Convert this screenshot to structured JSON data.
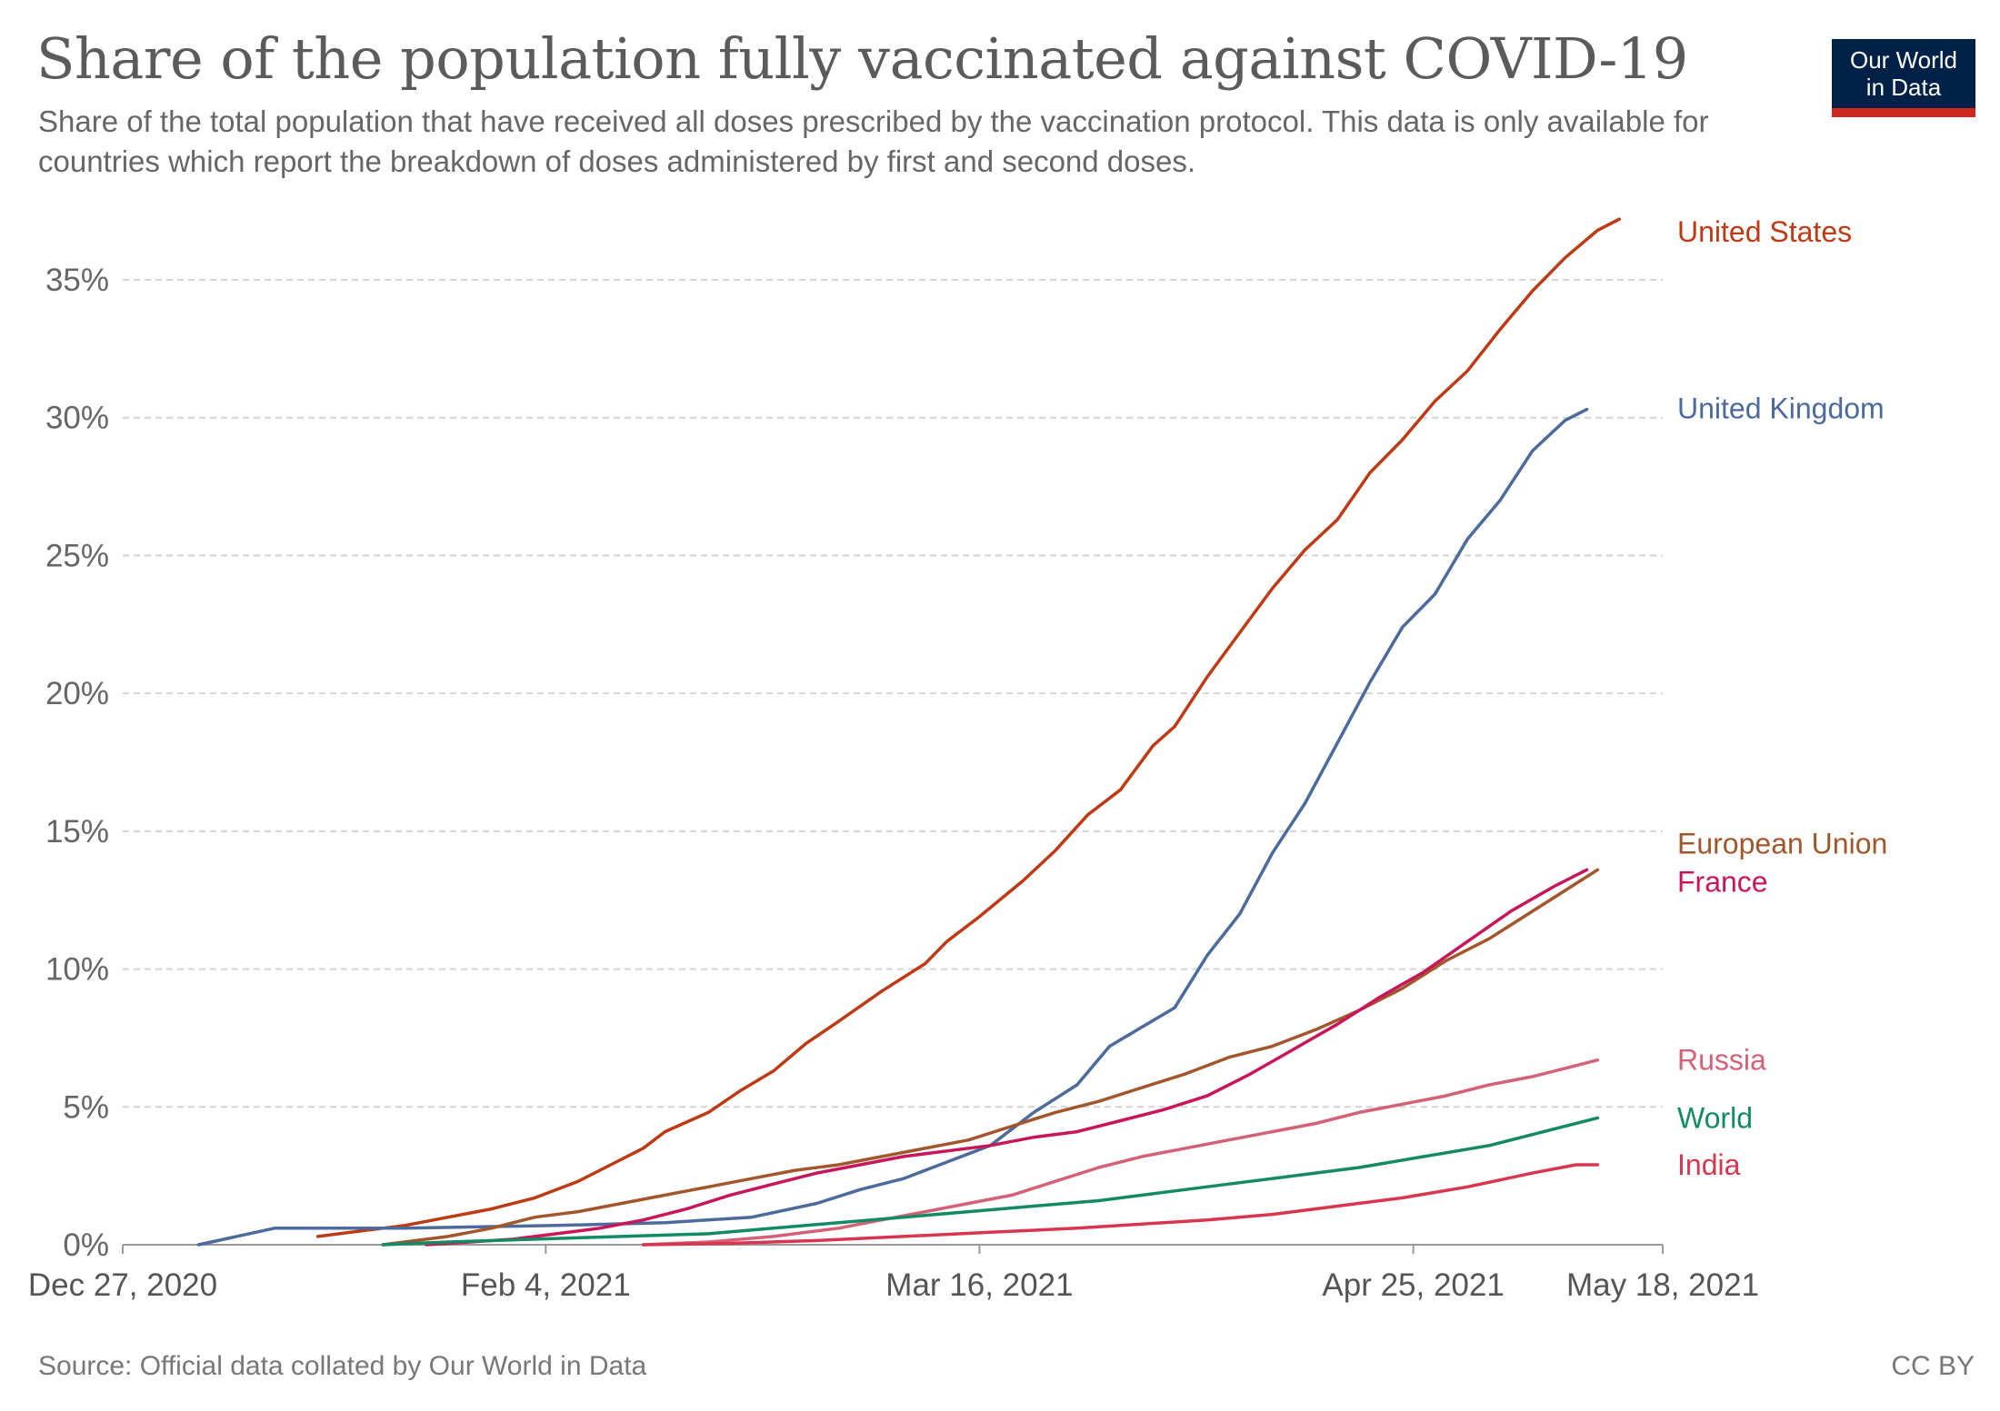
{
  "header": {
    "title": "Share of the population fully vaccinated against COVID-19",
    "subtitle": "Share of the total population that have received all doses prescribed by the vaccination protocol. This data is only available for countries which report the breakdown of doses administered by first and second doses."
  },
  "logo": {
    "line1": "Our World",
    "line2": "in Data",
    "bg_color": "#002147",
    "stripe_color": "#ce261e"
  },
  "footer": {
    "source": "Source: Official data collated by Our World in Data",
    "license": "CC BY"
  },
  "chart_data": {
    "type": "line",
    "title": "Share of the population fully vaccinated against COVID-19",
    "ylim": [
      0,
      35
    ],
    "yticks": [
      0,
      5,
      10,
      15,
      20,
      25,
      30,
      35
    ],
    "ytick_labels": [
      "0%",
      "5%",
      "10%",
      "15%",
      "20%",
      "25%",
      "30%",
      "35%"
    ],
    "xlim": [
      0,
      142
    ],
    "xticks": [
      0,
      39,
      79,
      119,
      142
    ],
    "xtick_labels": [
      "Dec 27, 2020",
      "Feb 4, 2021",
      "Mar 16, 2021",
      "Apr 25, 2021",
      "May 18, 2021"
    ],
    "grid": "horizontal-dashed",
    "series": [
      {
        "name": "United States",
        "color": "#be3a15",
        "points": [
          [
            18,
            0.3
          ],
          [
            22,
            0.5
          ],
          [
            26,
            0.7
          ],
          [
            30,
            1.0
          ],
          [
            34,
            1.3
          ],
          [
            38,
            1.7
          ],
          [
            42,
            2.3
          ],
          [
            45,
            2.9
          ],
          [
            48,
            3.5
          ],
          [
            50,
            4.1
          ],
          [
            54,
            4.8
          ],
          [
            57,
            5.6
          ],
          [
            60,
            6.3
          ],
          [
            63,
            7.3
          ],
          [
            66,
            8.1
          ],
          [
            70,
            9.2
          ],
          [
            74,
            10.2
          ],
          [
            76,
            11.0
          ],
          [
            79,
            11.9
          ],
          [
            83,
            13.2
          ],
          [
            86,
            14.3
          ],
          [
            89,
            15.6
          ],
          [
            92,
            16.5
          ],
          [
            95,
            18.1
          ],
          [
            97,
            18.8
          ],
          [
            100,
            20.6
          ],
          [
            103,
            22.2
          ],
          [
            106,
            23.8
          ],
          [
            109,
            25.2
          ],
          [
            112,
            26.3
          ],
          [
            115,
            28.0
          ],
          [
            118,
            29.2
          ],
          [
            121,
            30.6
          ],
          [
            124,
            31.7
          ],
          [
            127,
            33.2
          ],
          [
            130,
            34.6
          ],
          [
            133,
            35.8
          ],
          [
            136,
            36.8
          ],
          [
            138,
            37.2
          ]
        ]
      },
      {
        "name": "United Kingdom",
        "color": "#4c6a9c",
        "points": [
          [
            7,
            0.0
          ],
          [
            14,
            0.6
          ],
          [
            26,
            0.6
          ],
          [
            40,
            0.7
          ],
          [
            50,
            0.8
          ],
          [
            58,
            1.0
          ],
          [
            64,
            1.5
          ],
          [
            68,
            2.0
          ],
          [
            72,
            2.4
          ],
          [
            76,
            3.0
          ],
          [
            80,
            3.6
          ],
          [
            84,
            4.8
          ],
          [
            88,
            5.8
          ],
          [
            91,
            7.2
          ],
          [
            94,
            7.9
          ],
          [
            97,
            8.6
          ],
          [
            100,
            10.5
          ],
          [
            103,
            12.0
          ],
          [
            106,
            14.2
          ],
          [
            109,
            16.0
          ],
          [
            112,
            18.2
          ],
          [
            115,
            20.4
          ],
          [
            118,
            22.4
          ],
          [
            121,
            23.6
          ],
          [
            124,
            25.6
          ],
          [
            127,
            27.0
          ],
          [
            130,
            28.8
          ],
          [
            133,
            29.9
          ],
          [
            135,
            30.3
          ]
        ]
      },
      {
        "name": "European Union",
        "color": "#a2562c",
        "points": [
          [
            24,
            0.0
          ],
          [
            30,
            0.3
          ],
          [
            34,
            0.6
          ],
          [
            38,
            1.0
          ],
          [
            42,
            1.2
          ],
          [
            46,
            1.5
          ],
          [
            50,
            1.8
          ],
          [
            54,
            2.1
          ],
          [
            58,
            2.4
          ],
          [
            62,
            2.7
          ],
          [
            66,
            2.9
          ],
          [
            70,
            3.2
          ],
          [
            74,
            3.5
          ],
          [
            78,
            3.8
          ],
          [
            82,
            4.3
          ],
          [
            86,
            4.8
          ],
          [
            90,
            5.2
          ],
          [
            94,
            5.7
          ],
          [
            98,
            6.2
          ],
          [
            102,
            6.8
          ],
          [
            106,
            7.2
          ],
          [
            110,
            7.8
          ],
          [
            114,
            8.5
          ],
          [
            118,
            9.3
          ],
          [
            122,
            10.3
          ],
          [
            126,
            11.1
          ],
          [
            130,
            12.1
          ],
          [
            134,
            13.1
          ],
          [
            136,
            13.6
          ]
        ]
      },
      {
        "name": "France",
        "color": "#c8165b",
        "points": [
          [
            28,
            0.0
          ],
          [
            32,
            0.1
          ],
          [
            36,
            0.2
          ],
          [
            40,
            0.4
          ],
          [
            44,
            0.6
          ],
          [
            48,
            0.9
          ],
          [
            52,
            1.3
          ],
          [
            56,
            1.8
          ],
          [
            60,
            2.2
          ],
          [
            64,
            2.6
          ],
          [
            68,
            2.9
          ],
          [
            72,
            3.2
          ],
          [
            76,
            3.4
          ],
          [
            80,
            3.6
          ],
          [
            84,
            3.9
          ],
          [
            88,
            4.1
          ],
          [
            92,
            4.5
          ],
          [
            96,
            4.9
          ],
          [
            100,
            5.4
          ],
          [
            104,
            6.2
          ],
          [
            108,
            7.1
          ],
          [
            112,
            8.0
          ],
          [
            116,
            9.0
          ],
          [
            120,
            9.9
          ],
          [
            124,
            11.0
          ],
          [
            128,
            12.1
          ],
          [
            132,
            13.0
          ],
          [
            135,
            13.6
          ]
        ]
      },
      {
        "name": "Russia",
        "color": "#d46178",
        "points": [
          [
            48,
            0.0
          ],
          [
            54,
            0.1
          ],
          [
            60,
            0.3
          ],
          [
            66,
            0.6
          ],
          [
            70,
            0.9
          ],
          [
            74,
            1.2
          ],
          [
            78,
            1.5
          ],
          [
            82,
            1.8
          ],
          [
            86,
            2.3
          ],
          [
            90,
            2.8
          ],
          [
            94,
            3.2
          ],
          [
            98,
            3.5
          ],
          [
            102,
            3.8
          ],
          [
            106,
            4.1
          ],
          [
            110,
            4.4
          ],
          [
            114,
            4.8
          ],
          [
            118,
            5.1
          ],
          [
            122,
            5.4
          ],
          [
            126,
            5.8
          ],
          [
            130,
            6.1
          ],
          [
            134,
            6.5
          ],
          [
            136,
            6.7
          ]
        ]
      },
      {
        "name": "World",
        "color": "#148a63",
        "points": [
          [
            24,
            0.0
          ],
          [
            30,
            0.1
          ],
          [
            38,
            0.2
          ],
          [
            46,
            0.3
          ],
          [
            54,
            0.4
          ],
          [
            60,
            0.6
          ],
          [
            66,
            0.8
          ],
          [
            72,
            1.0
          ],
          [
            78,
            1.2
          ],
          [
            84,
            1.4
          ],
          [
            90,
            1.6
          ],
          [
            96,
            1.9
          ],
          [
            102,
            2.2
          ],
          [
            108,
            2.5
          ],
          [
            114,
            2.8
          ],
          [
            120,
            3.2
          ],
          [
            126,
            3.6
          ],
          [
            132,
            4.2
          ],
          [
            136,
            4.6
          ]
        ]
      },
      {
        "name": "India",
        "color": "#d8354f",
        "points": [
          [
            48,
            0.0
          ],
          [
            56,
            0.05
          ],
          [
            64,
            0.15
          ],
          [
            72,
            0.3
          ],
          [
            80,
            0.45
          ],
          [
            88,
            0.6
          ],
          [
            94,
            0.75
          ],
          [
            100,
            0.9
          ],
          [
            106,
            1.1
          ],
          [
            112,
            1.4
          ],
          [
            118,
            1.7
          ],
          [
            124,
            2.1
          ],
          [
            130,
            2.6
          ],
          [
            134,
            2.9
          ],
          [
            136,
            2.9
          ]
        ]
      }
    ]
  }
}
